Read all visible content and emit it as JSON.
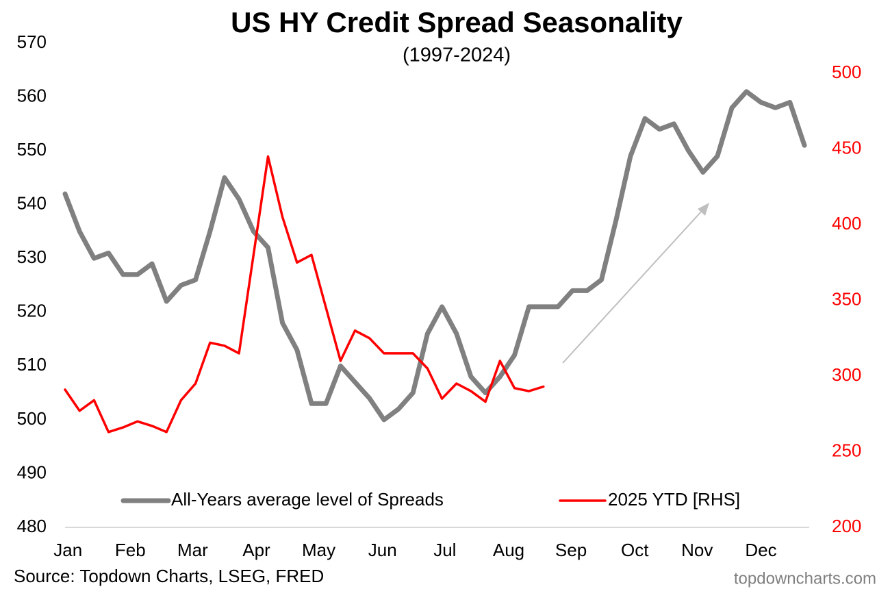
{
  "chart_data": {
    "type": "line",
    "title": "US HY Credit Spread Seasonality",
    "subtitle": "(1997-2024)",
    "source": "Source: Topdown Charts, LSEG, FRED",
    "watermark": "topdowncharts.com",
    "x": [
      1,
      2,
      3,
      4,
      5,
      6,
      7,
      8,
      9,
      10,
      11,
      12,
      13,
      14,
      15,
      16,
      17,
      18,
      19,
      20,
      21,
      22,
      23,
      24,
      25,
      26,
      27,
      28,
      29,
      30,
      31,
      32,
      33,
      34,
      35,
      36,
      37,
      38,
      39,
      40,
      41,
      42,
      43,
      44,
      45,
      46,
      47,
      48,
      49,
      50,
      51,
      52
    ],
    "xlim": [
      1,
      52
    ],
    "xticks": [
      {
        "value": 1.2,
        "label": "Jan"
      },
      {
        "value": 5.5,
        "label": "Feb"
      },
      {
        "value": 9.8,
        "label": "Mar"
      },
      {
        "value": 14.2,
        "label": "Apr"
      },
      {
        "value": 18.5,
        "label": "May"
      },
      {
        "value": 22.9,
        "label": "Jun"
      },
      {
        "value": 27.2,
        "label": "Jul"
      },
      {
        "value": 31.6,
        "label": "Aug"
      },
      {
        "value": 35.9,
        "label": "Sep"
      },
      {
        "value": 40.3,
        "label": "Oct"
      },
      {
        "value": 44.6,
        "label": "Nov"
      },
      {
        "value": 49.0,
        "label": "Dec"
      }
    ],
    "ylim": [
      480,
      570
    ],
    "yticks": [
      480,
      490,
      500,
      510,
      520,
      530,
      540,
      550,
      560,
      570
    ],
    "y2lim": [
      200,
      500
    ],
    "y2ticks": [
      200,
      250,
      300,
      350,
      400,
      450,
      500
    ],
    "y2_color": "#ff0000",
    "legend": "bottom",
    "series": [
      {
        "name": "All-Years average level of Spreads",
        "color": "#808080",
        "width": 7,
        "values": [
          542,
          535,
          530,
          531,
          527,
          527,
          529,
          522,
          525,
          526,
          535,
          545,
          541,
          535,
          532,
          518,
          513,
          503,
          503,
          510,
          507,
          504,
          500,
          502,
          505,
          516,
          521,
          516,
          508,
          505,
          508,
          512,
          521,
          521,
          521,
          524,
          524,
          526,
          537,
          549,
          556,
          554,
          555,
          550,
          546,
          549,
          558,
          561,
          559,
          558,
          559,
          551
        ]
      },
      {
        "name": "2025 YTD [RHS]",
        "color": "#ff0000",
        "width": 3.5,
        "axis": "y2",
        "values": [
          291,
          277,
          284,
          263,
          266,
          270,
          267,
          263,
          284,
          295,
          322,
          320,
          315,
          380,
          445,
          405,
          375,
          380,
          345,
          310,
          330,
          325,
          315,
          315,
          315,
          305,
          285,
          295,
          290,
          283,
          310,
          292,
          290,
          293,
          null,
          null,
          null,
          null,
          null,
          null,
          null,
          null,
          null,
          null,
          null,
          null,
          null,
          null,
          null,
          null,
          null,
          null
        ]
      }
    ]
  }
}
